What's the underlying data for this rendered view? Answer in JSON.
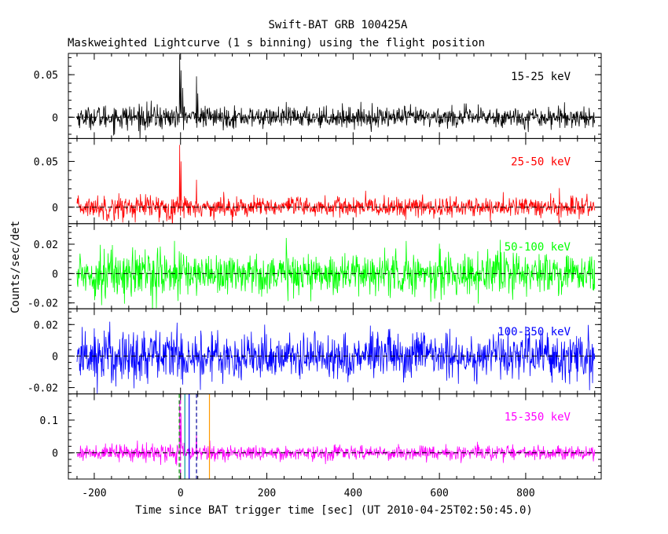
{
  "chart_data": {
    "type": "line",
    "title": "Swift-BAT GRB 100425A",
    "subtitle": "Maskweighted Lightcurve (1 s binning) using the flight position",
    "xlabel": "Time since BAT trigger time [sec] (UT 2010-04-25T02:50:45.0)",
    "ylabel": "Counts/sec/det",
    "xlim": [
      -260,
      975
    ],
    "x_ticks": [
      "-200",
      "0",
      "200",
      "400",
      "600",
      "800"
    ],
    "x_tick_values": [
      -200,
      0,
      200,
      400,
      600,
      800
    ],
    "data_x_range": [
      -240,
      960
    ],
    "grid": false,
    "panels": [
      {
        "band": "15-25 keV",
        "color": "#000000",
        "ylim": [
          -0.025,
          0.075
        ],
        "y_ticks": [
          "0.05",
          "0"
        ],
        "y_tick_values": [
          0.05,
          0
        ],
        "noise_sigma": 0.006,
        "peaks": [
          {
            "x": -2,
            "y": 0.074
          },
          {
            "x": 1,
            "y": 0.055
          },
          {
            "x": 5,
            "y": 0.03
          },
          {
            "x": 37,
            "y": 0.048
          },
          {
            "x": 40,
            "y": 0.028
          }
        ]
      },
      {
        "band": "25-50 keV",
        "color": "#ff0000",
        "ylim": [
          -0.018,
          0.075
        ],
        "y_ticks": [
          "0.05",
          "0"
        ],
        "y_tick_values": [
          0.05,
          0
        ],
        "noise_sigma": 0.0055,
        "peaks": [
          {
            "x": -2,
            "y": 0.068
          },
          {
            "x": 1,
            "y": 0.05
          },
          {
            "x": 37,
            "y": 0.03
          }
        ]
      },
      {
        "band": "50-100 keV",
        "color": "#00ff00",
        "ylim": [
          -0.024,
          0.034
        ],
        "y_ticks": [
          "0.02",
          "0",
          "-0.02"
        ],
        "y_tick_values": [
          0.02,
          0,
          -0.02
        ],
        "noise_sigma": 0.007,
        "peaks": []
      },
      {
        "band": "100-350 keV",
        "color": "#0000ff",
        "ylim": [
          -0.024,
          0.03
        ],
        "y_ticks": [
          "0.02",
          "0",
          "-0.02"
        ],
        "y_tick_values": [
          0.02,
          0,
          -0.02
        ],
        "noise_sigma": 0.0075,
        "peaks": []
      },
      {
        "band": "15-350 keV",
        "color": "#ff00ff",
        "ylim": [
          -0.08,
          0.18
        ],
        "y_ticks": [
          "0.1",
          "0"
        ],
        "y_tick_values": [
          0.1,
          0
        ],
        "noise_sigma": 0.011,
        "peaks": [
          {
            "x": -2,
            "y": 0.16
          },
          {
            "x": 1,
            "y": 0.12
          },
          {
            "x": 37,
            "y": 0.06
          }
        ]
      }
    ],
    "vertical_markers": [
      {
        "x": -3,
        "color": "#009900",
        "style": "dashed"
      },
      {
        "x": 0,
        "color": "#cc00cc",
        "style": "dashed"
      },
      {
        "x": 10,
        "color": "#009999",
        "style": "solid"
      },
      {
        "x": 20,
        "color": "#0000ff",
        "style": "solid"
      },
      {
        "x": 37,
        "color": "#000099",
        "style": "dashed"
      },
      {
        "x": 67,
        "color": "#ff9900",
        "style": "solid"
      }
    ]
  }
}
